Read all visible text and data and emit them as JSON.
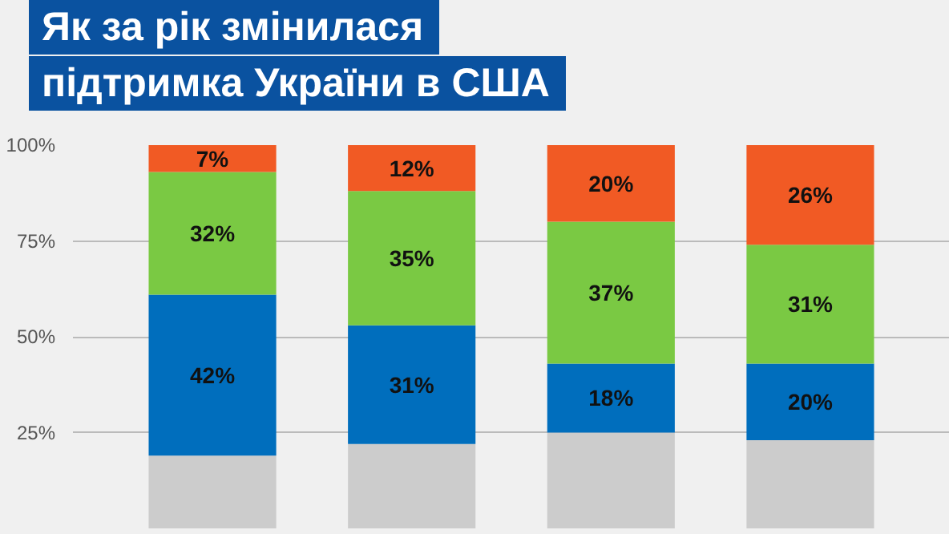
{
  "chart_data": {
    "type": "bar",
    "title": "Як за рік змінилася\nпідтримка України в США",
    "categories": [
      null,
      null,
      null,
      null
    ],
    "stacked": true,
    "series": [
      {
        "color": "#cccccc",
        "values": [
          19,
          22,
          25,
          23
        ]
      },
      {
        "color": "#006ebd",
        "values": [
          42,
          31,
          18,
          20
        ],
        "value_labels": [
          "42%",
          "31%",
          "18%",
          "20%"
        ]
      },
      {
        "color": "#7ac943",
        "values": [
          32,
          35,
          37,
          31
        ],
        "value_labels": [
          "32%",
          "35%",
          "37%",
          "31%"
        ]
      },
      {
        "color": "#f15a24",
        "values": [
          7,
          12,
          20,
          26
        ],
        "value_labels": [
          "7%",
          "12%",
          "20%",
          "26%"
        ]
      }
    ],
    "ylim": [
      0,
      100
    ],
    "yticks": [
      {
        "value": 25,
        "label": "25%"
      },
      {
        "value": 50,
        "label": "50%"
      },
      {
        "value": 75,
        "label": "75%"
      },
      {
        "value": 100,
        "label": "100%"
      }
    ],
    "grid": "y"
  }
}
